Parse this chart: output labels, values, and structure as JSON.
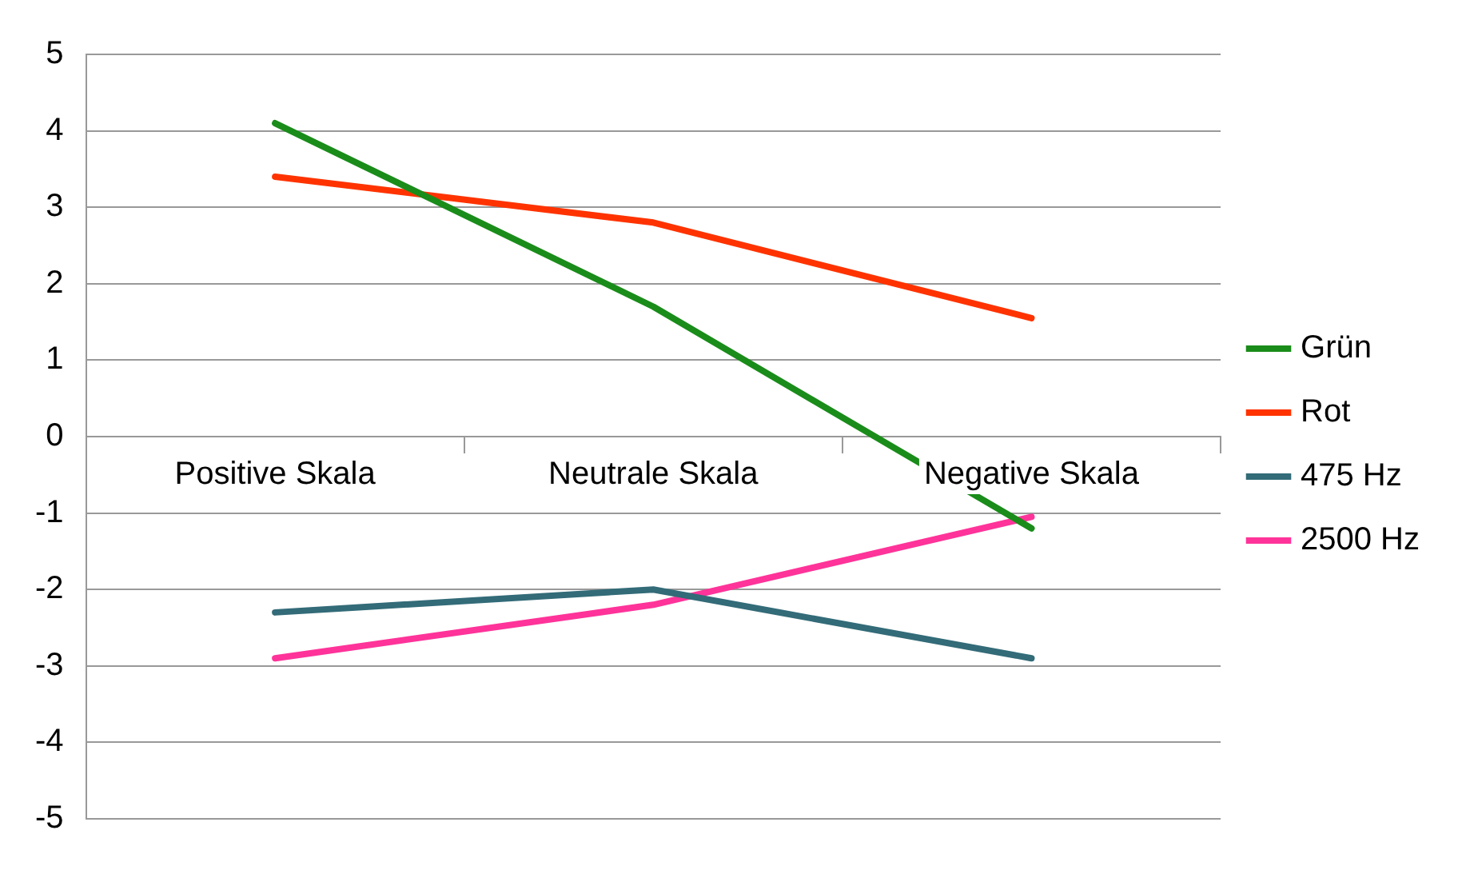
{
  "chart_data": {
    "type": "line",
    "categories": [
      "Positive Skala",
      "Neutrale Skala",
      "Negative Skala"
    ],
    "series": [
      {
        "name": "Grün",
        "color": "#1a8c1a",
        "values": [
          4.1,
          1.7,
          -1.2
        ]
      },
      {
        "name": "Rot",
        "color": "#ff3300",
        "values": [
          3.4,
          2.8,
          1.55
        ]
      },
      {
        "name": "475 Hz",
        "color": "#336b78",
        "values": [
          -2.3,
          -2.0,
          -2.9
        ]
      },
      {
        "name": "2500 Hz",
        "color": "#ff3399",
        "values": [
          -2.9,
          -2.2,
          -1.05
        ]
      }
    ],
    "ylim": [
      -5,
      5
    ],
    "yticks": [
      -5,
      -4,
      -3,
      -2,
      -1,
      0,
      1,
      2,
      3,
      4,
      5
    ],
    "grid": "y",
    "legend": "right",
    "marker": "none"
  }
}
